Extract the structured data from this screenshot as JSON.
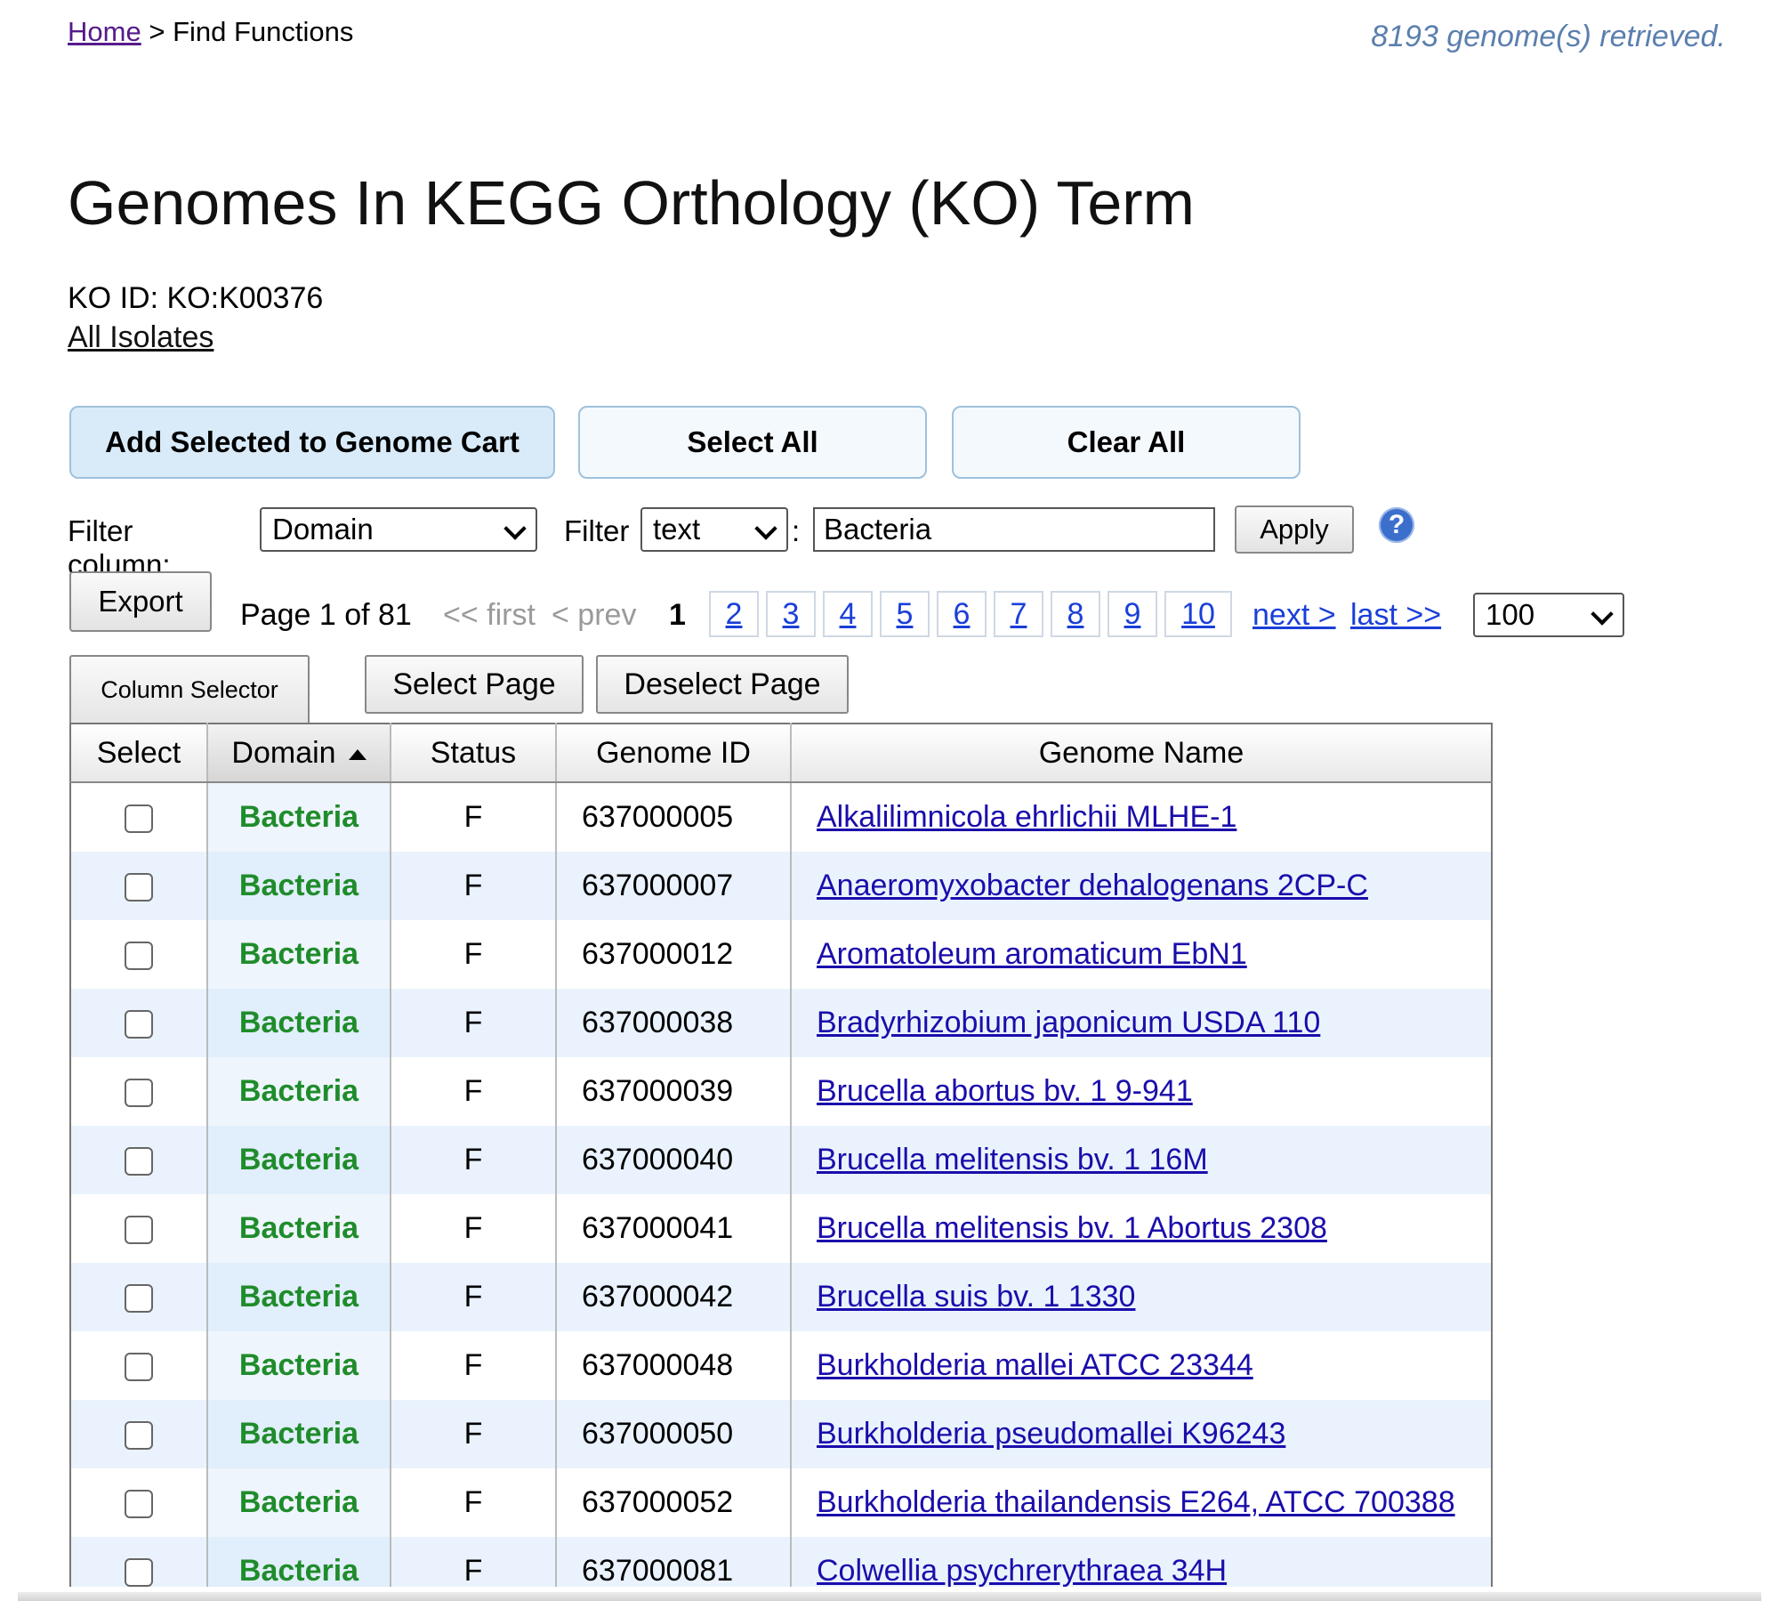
{
  "breadcrumb": {
    "home": "Home",
    "separator": ">",
    "current": "Find Functions"
  },
  "retrieved_text": "8193 genome(s) retrieved.",
  "page_title": "Genomes In KEGG Orthology (KO) Term",
  "ko_id": "KO ID: KO:K00376",
  "all_isolates": "All Isolates",
  "actions": {
    "add_selected": "Add Selected to Genome Cart",
    "select_all": "Select All",
    "clear_all": "Clear All"
  },
  "filter": {
    "column_label": "Filter column:",
    "column_value": "Domain",
    "filter_label": "Filter",
    "type_value": "text",
    "colon": ":",
    "text_value": "Bacteria",
    "apply": "Apply",
    "help": "?"
  },
  "pager": {
    "export": "Export",
    "page_info": "Page 1 of 81",
    "first": "<< first",
    "prev": "< prev",
    "current": "1",
    "pages": [
      "2",
      "3",
      "4",
      "5",
      "6",
      "7",
      "8",
      "9",
      "10"
    ],
    "next": "next >",
    "last": "last >>",
    "per_page": "100"
  },
  "table_controls": {
    "column_selector": "Column Selector",
    "select_page": "Select Page",
    "deselect_page": "Deselect Page"
  },
  "table": {
    "headers": [
      "Select",
      "Domain",
      "Status",
      "Genome ID",
      "Genome Name"
    ],
    "rows": [
      {
        "domain": "Bacteria",
        "status": "F",
        "id": "637000005",
        "name": "Alkalilimnicola ehrlichii MLHE-1"
      },
      {
        "domain": "Bacteria",
        "status": "F",
        "id": "637000007",
        "name": "Anaeromyxobacter dehalogenans 2CP-C"
      },
      {
        "domain": "Bacteria",
        "status": "F",
        "id": "637000012",
        "name": "Aromatoleum aromaticum EbN1"
      },
      {
        "domain": "Bacteria",
        "status": "F",
        "id": "637000038",
        "name": "Bradyrhizobium japonicum USDA 110"
      },
      {
        "domain": "Bacteria",
        "status": "F",
        "id": "637000039",
        "name": "Brucella abortus bv. 1 9-941"
      },
      {
        "domain": "Bacteria",
        "status": "F",
        "id": "637000040",
        "name": "Brucella melitensis bv. 1 16M"
      },
      {
        "domain": "Bacteria",
        "status": "F",
        "id": "637000041",
        "name": "Brucella melitensis bv. 1 Abortus 2308"
      },
      {
        "domain": "Bacteria",
        "status": "F",
        "id": "637000042",
        "name": "Brucella suis bv. 1 1330"
      },
      {
        "domain": "Bacteria",
        "status": "F",
        "id": "637000048",
        "name": "Burkholderia mallei ATCC 23344"
      },
      {
        "domain": "Bacteria",
        "status": "F",
        "id": "637000050",
        "name": "Burkholderia pseudomallei K96243"
      },
      {
        "domain": "Bacteria",
        "status": "F",
        "id": "637000052",
        "name": "Burkholderia thailandensis E264, ATCC 700388"
      },
      {
        "domain": "Bacteria",
        "status": "F",
        "id": "637000081",
        "name": "Colwellia psychrerythraea 34H"
      }
    ]
  },
  "colors": {
    "domain_text": "#1f8c2b",
    "link": "#1a3fd8",
    "retrieved_text": "#5b7fae",
    "row_alt": "#eaf3fd"
  }
}
